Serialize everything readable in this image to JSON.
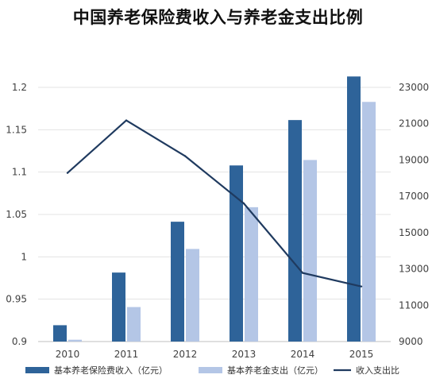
{
  "chart_data": {
    "type": "bar",
    "title": "中国养老保险费收入与养老金支出比例",
    "categories": [
      "2010",
      "2011",
      "2012",
      "2013",
      "2014",
      "2015"
    ],
    "series": [
      {
        "name": "基本养老保险费收入（亿元）",
        "kind": "bar",
        "axis": "right",
        "color": "#2e6399",
        "values": [
          9900,
          12800,
          15600,
          18700,
          21200,
          23600
        ]
      },
      {
        "name": "基本养老金支出（亿元）",
        "kind": "bar",
        "axis": "right",
        "color": "#b4c6e6",
        "values": [
          9100,
          10900,
          14100,
          16400,
          19000,
          22200
        ]
      },
      {
        "name": "收入支出比",
        "kind": "line",
        "axis": "left",
        "color": "#1f3a5f",
        "values": [
          1.099,
          1.161,
          1.119,
          1.063,
          0.981,
          0.965
        ]
      }
    ],
    "y_left": {
      "ylim": [
        0.9,
        1.2
      ],
      "ticks": [
        "0.9",
        "0.95",
        "1",
        "1.05",
        "1.1",
        "1.15",
        "1.2"
      ],
      "tick_values": [
        0.9,
        0.95,
        1.0,
        1.05,
        1.1,
        1.15,
        1.2
      ]
    },
    "y_right": {
      "ylim": [
        9000,
        23000
      ],
      "ticks": [
        "9000",
        "11000",
        "13000",
        "15000",
        "17000",
        "19000",
        "21000",
        "23000"
      ],
      "tick_values": [
        9000,
        11000,
        13000,
        15000,
        17000,
        19000,
        21000,
        23000
      ]
    },
    "grid": "horizontal",
    "legend_position": "bottom"
  }
}
